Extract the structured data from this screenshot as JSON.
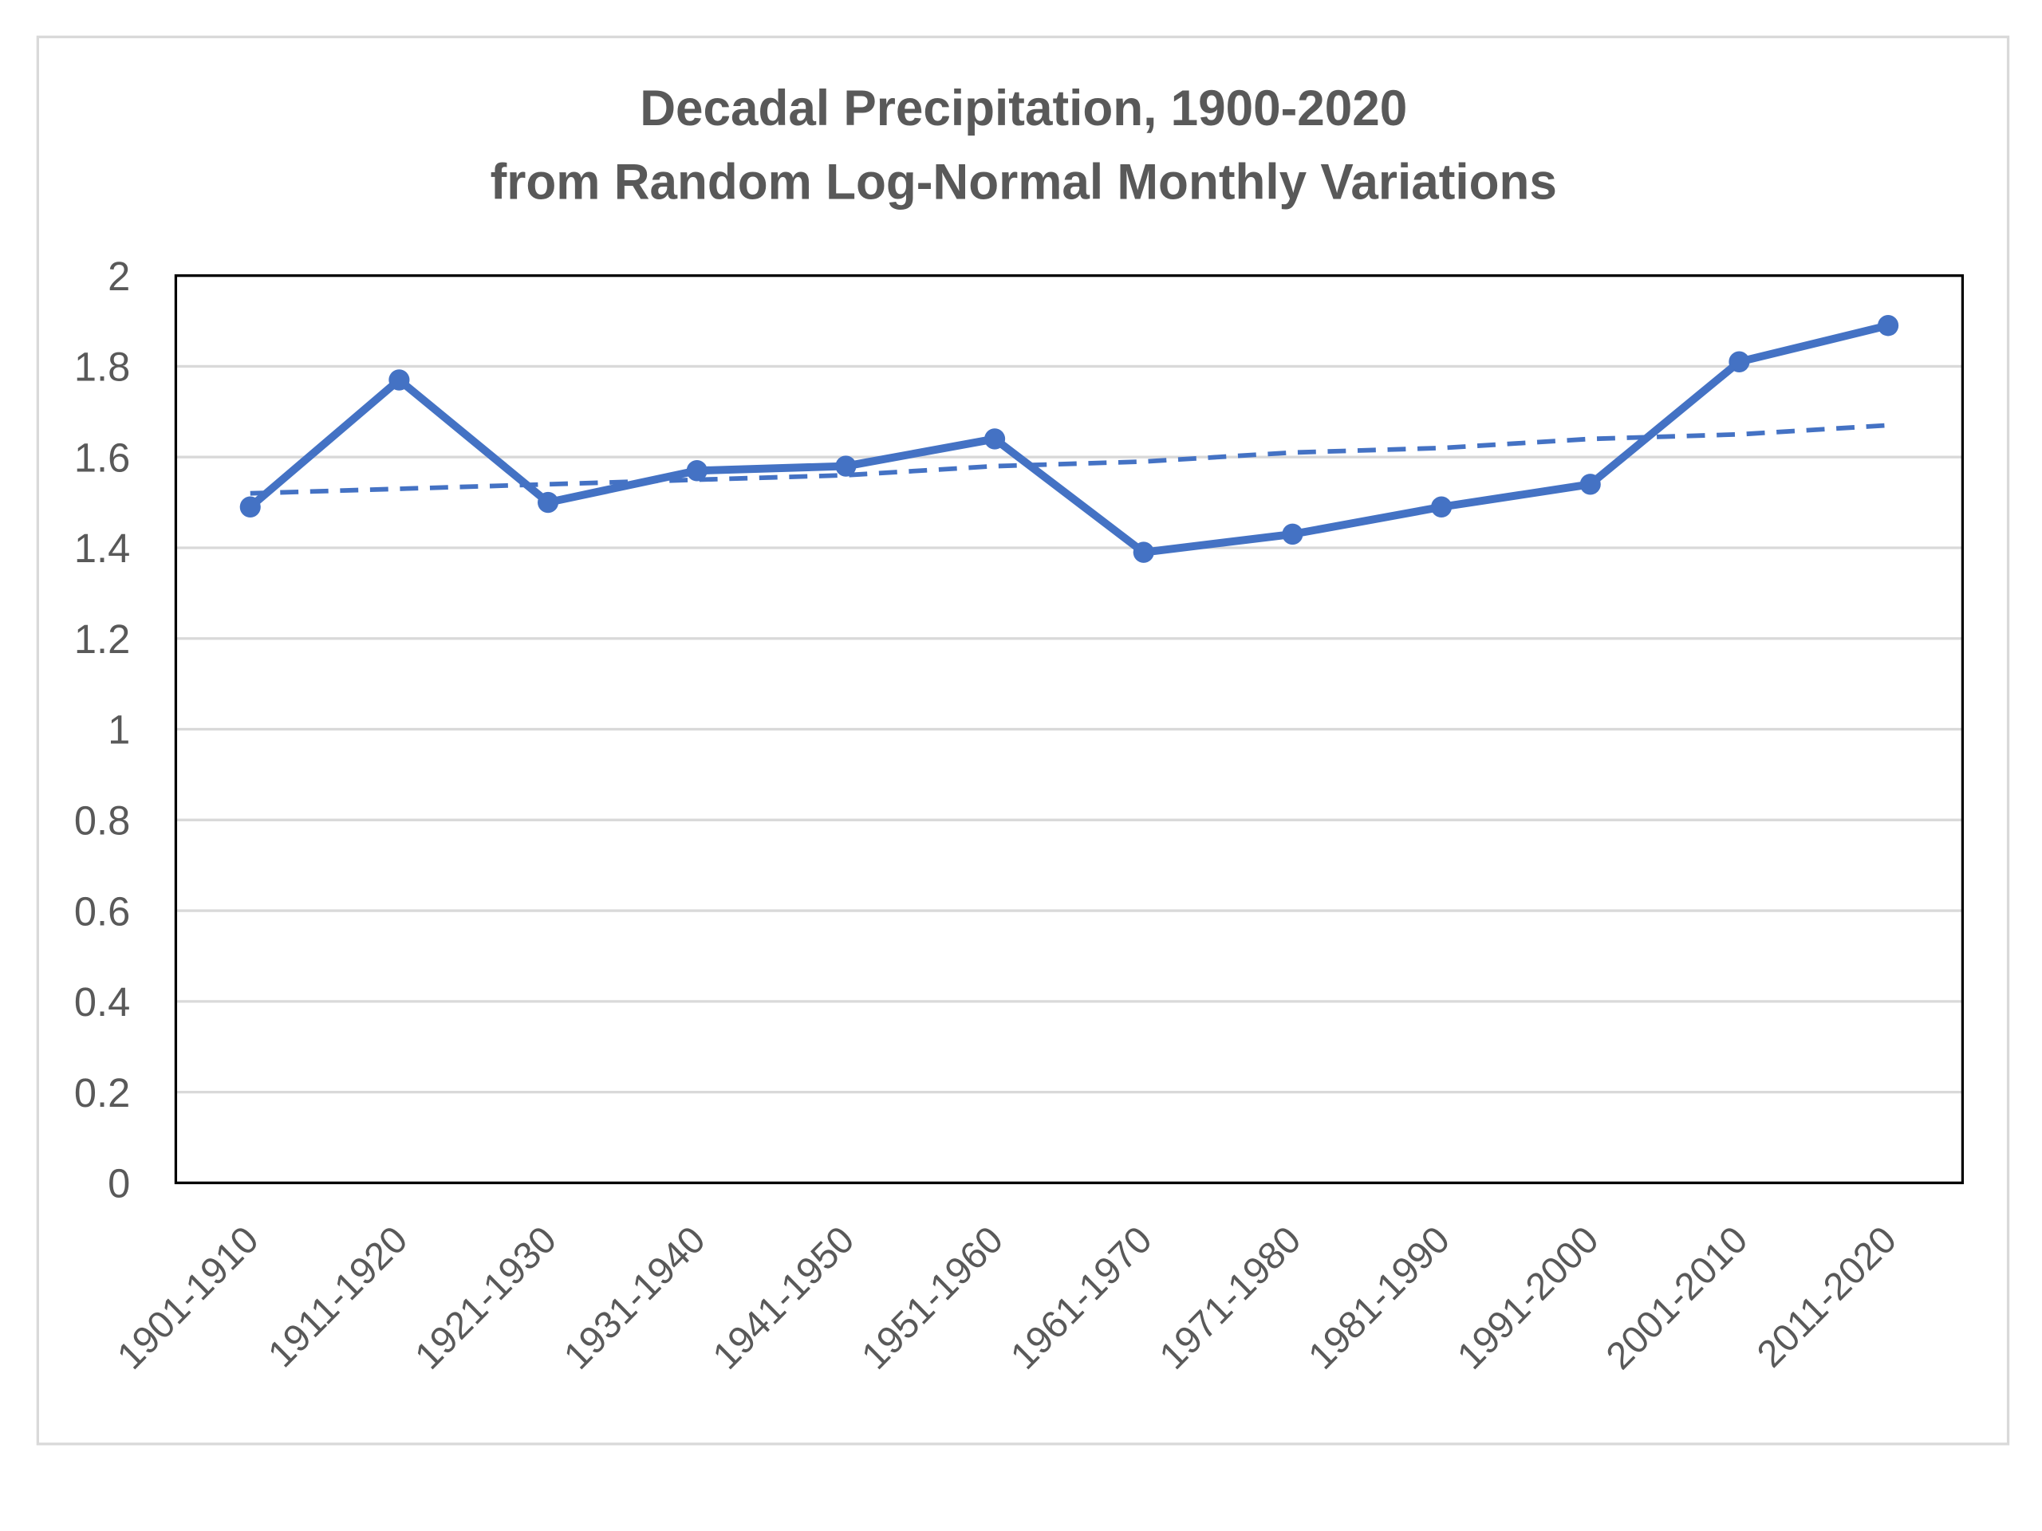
{
  "chart_data": {
    "type": "line",
    "title": "Decadal Precipitation, 1900-2020",
    "subtitle": "from Random Log-Normal Monthly Variations",
    "xlabel": "",
    "ylabel": "",
    "ylim": [
      0,
      2
    ],
    "yticks": [
      "0",
      "0.2",
      "0.4",
      "0.6",
      "0.8",
      "1",
      "1.2",
      "1.4",
      "1.6",
      "1.8",
      "2"
    ],
    "grid": true,
    "legend": "none",
    "categories": [
      "1901-1910",
      "1911-1920",
      "1921-1930",
      "1931-1940",
      "1941-1950",
      "1951-1960",
      "1961-1970",
      "1971-1980",
      "1981-1990",
      "1991-2000",
      "2001-2010",
      "2011-2020"
    ],
    "series": [
      {
        "name": "Decadal precipitation",
        "values": [
          1.49,
          1.77,
          1.5,
          1.57,
          1.58,
          1.64,
          1.39,
          1.43,
          1.49,
          1.54,
          1.81,
          1.89
        ],
        "color": "#4472C4",
        "style": "solid-markers"
      },
      {
        "name": "Linear trend",
        "values": [
          1.52,
          1.53,
          1.54,
          1.55,
          1.56,
          1.58,
          1.59,
          1.61,
          1.62,
          1.64,
          1.65,
          1.67
        ],
        "color": "#4472C4",
        "style": "dashed"
      }
    ]
  }
}
